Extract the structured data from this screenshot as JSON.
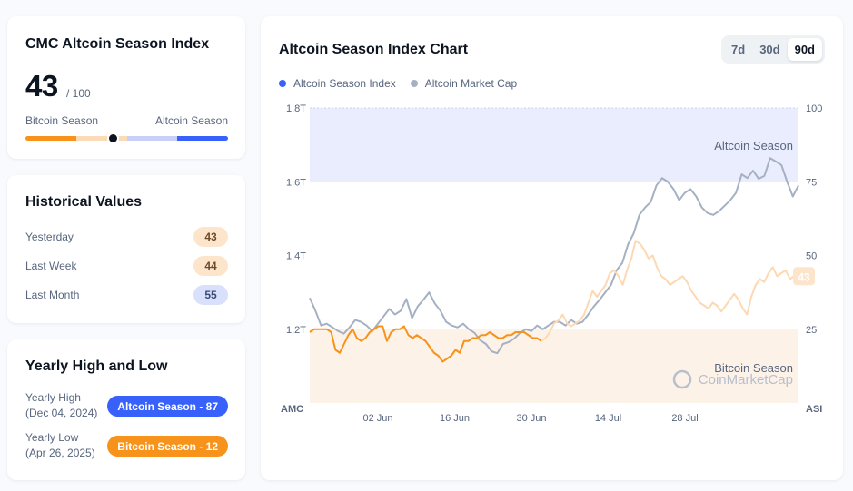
{
  "index_card": {
    "title": "CMC Altcoin Season Index",
    "value": "43",
    "suffix": "/ 100",
    "left_label": "Bitcoin Season",
    "right_label": "Altcoin Season",
    "level": 0.43,
    "colors": {
      "bitcoin_strong": "#f7931a",
      "bitcoin_light": "#fbdab7",
      "altcoin_light": "#c8d0f7",
      "altcoin_strong": "#3861fb"
    }
  },
  "historical": {
    "title": "Historical Values",
    "rows": [
      {
        "label": "Yesterday",
        "value": "43",
        "tone": "orange"
      },
      {
        "label": "Last Week",
        "value": "44",
        "tone": "orange"
      },
      {
        "label": "Last Month",
        "value": "55",
        "tone": "blue"
      }
    ]
  },
  "yearly": {
    "title": "Yearly High and Low",
    "high_label": "Yearly High",
    "high_date": "(Dec 04, 2024)",
    "high_badge": "Altcoin Season - 87",
    "low_label": "Yearly Low",
    "low_date": "(Apr 26, 2025)",
    "low_badge": "Bitcoin Season - 12",
    "colors": {
      "high": "#3861fb",
      "low": "#f7931a"
    }
  },
  "chart": {
    "title": "Altcoin Season Index Chart",
    "tabs": [
      {
        "label": "7d",
        "active": false
      },
      {
        "label": "30d",
        "active": false
      },
      {
        "label": "90d",
        "active": true
      }
    ],
    "legend": [
      {
        "label": "Altcoin Season Index",
        "color": "#3861fb"
      },
      {
        "label": "Altcoin Market Cap",
        "color": "#a6b0c3"
      }
    ],
    "watermark": "CoinMarketCap"
  },
  "chart_data": {
    "type": "line",
    "xlabel": "",
    "left_axis_title": "AMC",
    "right_axis_title": "ASI",
    "x_ticks": [
      "02 Jun",
      "16 Jun",
      "30 Jun",
      "14 Jul",
      "28 Jul"
    ],
    "left_ticks": [
      "1.2T",
      "1.4T",
      "1.6T",
      "1.8T"
    ],
    "left_range": [
      1.0,
      1.8
    ],
    "right_ticks": [
      "25",
      "50",
      "75",
      "100"
    ],
    "right_range": [
      0,
      100
    ],
    "zones": [
      {
        "label": "Altcoin Season",
        "from": 75,
        "to": 100,
        "color": "#eaedfd"
      },
      {
        "label": "Bitcoin Season",
        "from": 0,
        "to": 25,
        "color": "#fdf2e8"
      }
    ],
    "current_label": "43",
    "series": [
      {
        "name": "Altcoin Season Index",
        "axis": "right",
        "segments": [
          {
            "color": "#f7931a",
            "values": [
              24,
              25,
              25,
              25,
              25,
              24,
              18,
              17,
              20,
              23,
              25,
              22,
              21,
              22,
              24,
              25,
              26,
              26,
              21,
              24,
              25,
              25,
              26,
              23,
              22,
              23,
              22,
              21,
              19,
              17,
              16,
              14,
              15,
              16,
              18,
              17,
              21,
              21,
              22,
              22,
              23,
              23,
              24,
              23,
              22,
              22,
              23,
              23,
              24,
              24,
              24,
              23,
              22,
              22,
              21
            ]
          },
          {
            "color": "#fdd9b3",
            "values": [
              21,
              22,
              24,
              27,
              28,
              30,
              27,
              26,
              27,
              28,
              30,
              34,
              38,
              36,
              38,
              40,
              44,
              45,
              43,
              40,
              45,
              49,
              55,
              54,
              52,
              49,
              50,
              46,
              43,
              42,
              40,
              41,
              42,
              43,
              41,
              38,
              36,
              34,
              33,
              32,
              34,
              33,
              31,
              33,
              35,
              37,
              35,
              32,
              30,
              36,
              40,
              42,
              41,
              44,
              46,
              43,
              44,
              45,
              42,
              43
            ]
          }
        ]
      },
      {
        "name": "Altcoin Market Cap",
        "axis": "left",
        "color": "#a6b0c3",
        "values": [
          1.285,
          1.25,
          1.21,
          1.215,
          1.205,
          1.195,
          1.188,
          1.205,
          1.225,
          1.22,
          1.21,
          1.195,
          1.215,
          1.235,
          1.255,
          1.24,
          1.25,
          1.282,
          1.23,
          1.262,
          1.28,
          1.3,
          1.27,
          1.25,
          1.22,
          1.21,
          1.205,
          1.215,
          1.2,
          1.19,
          1.17,
          1.16,
          1.14,
          1.135,
          1.16,
          1.165,
          1.175,
          1.19,
          1.2,
          1.195,
          1.21,
          1.2,
          1.21,
          1.22,
          1.22,
          1.21,
          1.225,
          1.215,
          1.22,
          1.24,
          1.262,
          1.28,
          1.3,
          1.32,
          1.36,
          1.38,
          1.43,
          1.46,
          1.51,
          1.53,
          1.545,
          1.59,
          1.61,
          1.6,
          1.58,
          1.55,
          1.57,
          1.58,
          1.56,
          1.53,
          1.515,
          1.51,
          1.52,
          1.535,
          1.55,
          1.57,
          1.62,
          1.61,
          1.63,
          1.608,
          1.616,
          1.664,
          1.655,
          1.645,
          1.6,
          1.56,
          1.59
        ]
      }
    ]
  }
}
